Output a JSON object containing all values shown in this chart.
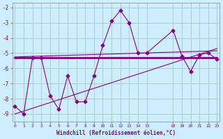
{
  "background_color": "#cceeff",
  "grid_color": "#aacccc",
  "line_color": "#880088",
  "xlabel": "Windchill (Refroidissement éolien,°C)",
  "x_data": [
    0,
    1,
    2,
    3,
    4,
    5,
    6,
    7,
    8,
    9,
    10,
    11,
    12,
    13,
    14,
    15,
    18,
    19,
    20,
    21,
    22,
    23
  ],
  "y_main": [
    -8.5,
    -9.0,
    -5.3,
    -5.3,
    -7.8,
    -8.7,
    -6.5,
    -8.2,
    -8.2,
    -6.5,
    -4.5,
    -2.9,
    -2.2,
    -3.0,
    -5.0,
    -5.0,
    -3.5,
    -5.2,
    -6.2,
    -5.1,
    -5.0,
    -5.4
  ],
  "y_flat": [
    -5.3,
    -5.3,
    -5.3,
    -5.3,
    -5.3,
    -5.3,
    -5.3,
    -5.3,
    -5.3,
    -5.3,
    -5.3,
    -5.3,
    -5.3,
    -5.3,
    -5.3,
    -5.3,
    -5.3,
    -5.3,
    -5.3,
    -5.3,
    -5.3,
    -5.3
  ],
  "trend1_x": [
    0,
    23
  ],
  "trend1_y": [
    -9.0,
    -4.7
  ],
  "trend2_x": [
    0,
    23
  ],
  "trend2_y": [
    -5.25,
    -4.85
  ],
  "x_ticks": [
    0,
    1,
    2,
    3,
    4,
    5,
    6,
    7,
    8,
    9,
    10,
    11,
    12,
    13,
    14,
    15,
    18,
    19,
    20,
    21,
    22,
    23
  ],
  "x_tick_labels": [
    "0",
    "1",
    "2",
    "3",
    "4",
    "5",
    "6",
    "7",
    "8",
    "9",
    "10",
    "11",
    "12",
    "13",
    "14",
    "15",
    "18",
    "19",
    "20",
    "21",
    "22",
    "23"
  ],
  "y_ticks": [
    -2,
    -3,
    -4,
    -5,
    -6,
    -7,
    -8,
    -9
  ],
  "y_tick_labels": [
    "-2",
    "-3",
    "-4",
    "-5",
    "-6",
    "-7",
    "-8",
    "-9"
  ],
  "xlim": [
    -0.3,
    23.3
  ],
  "ylim": [
    -9.5,
    -1.7
  ]
}
